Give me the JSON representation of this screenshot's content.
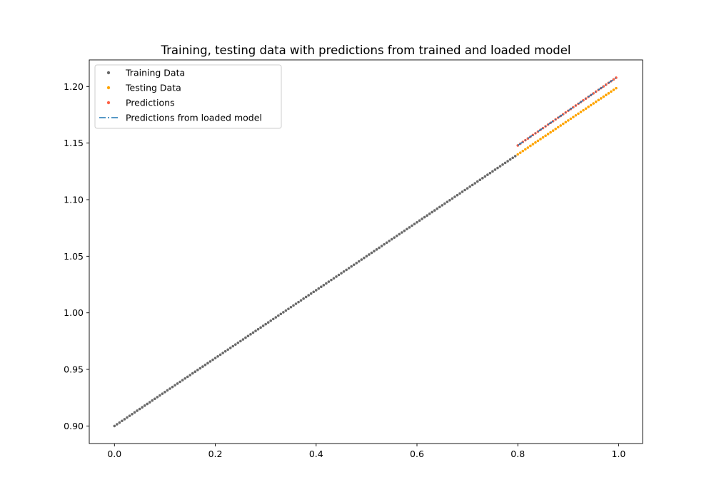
{
  "chart_data": {
    "type": "scatter",
    "title": "Training, testing data with predictions from trained and loaded model",
    "xlabel": "",
    "ylabel": "",
    "xlim": [
      -0.05,
      1.0475
    ],
    "ylim": [
      0.8845,
      1.2235
    ],
    "x_ticks": [
      "0.0",
      "0.2",
      "0.4",
      "0.6",
      "0.8",
      "1.0"
    ],
    "x_tick_values": [
      0.0,
      0.2,
      0.4,
      0.6,
      0.8,
      1.0
    ],
    "y_ticks": [
      "0.90",
      "0.95",
      "1.00",
      "1.05",
      "1.10",
      "1.15",
      "1.20"
    ],
    "y_tick_values": [
      0.9,
      0.95,
      1.0,
      1.05,
      1.1,
      1.15,
      1.2
    ],
    "grid": false,
    "legend_position": "top-left",
    "series": [
      {
        "name": "Training Data",
        "kind": "scatter",
        "color": "#696969",
        "x_range": [
          0.0,
          0.795
        ],
        "x_step": 0.005,
        "slope": 0.3,
        "intercept": 0.9
      },
      {
        "name": "Testing Data",
        "kind": "scatter",
        "color": "#ffa500",
        "x_range": [
          0.8,
          0.995
        ],
        "x_step": 0.005,
        "slope": 0.3,
        "intercept": 0.9
      },
      {
        "name": "Predictions",
        "kind": "scatter",
        "color": "#ff6347",
        "x_range": [
          0.8,
          0.995
        ],
        "x_step": 0.005,
        "slope": 0.307,
        "intercept": 0.9023
      },
      {
        "name": "Predictions from loaded model",
        "kind": "line",
        "style": "dash-dot",
        "color": "#1f77b4",
        "x_range": [
          0.8,
          0.995
        ],
        "x_step": 0.005,
        "slope": 0.307,
        "intercept": 0.9023
      }
    ]
  }
}
